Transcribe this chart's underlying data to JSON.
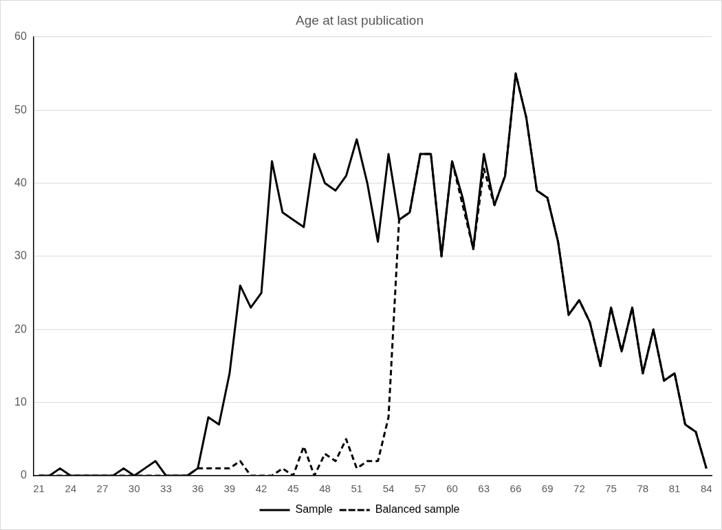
{
  "chart_data": {
    "type": "line",
    "title": "Age at last publication",
    "categories": [
      "21",
      null,
      null,
      "24",
      null,
      null,
      "27",
      null,
      null,
      "30",
      null,
      null,
      "33",
      null,
      null,
      "36",
      null,
      null,
      "39",
      null,
      null,
      "42",
      null,
      null,
      "45",
      null,
      null,
      "48",
      null,
      null,
      "51",
      null,
      null,
      "54",
      null,
      null,
      "57",
      null,
      null,
      "60",
      null,
      null,
      "63",
      null,
      null,
      "66",
      null,
      null,
      "69",
      null,
      null,
      "72",
      null,
      null,
      "75",
      null,
      null,
      "78",
      null,
      null,
      "81",
      null,
      null,
      "84"
    ],
    "series": [
      {
        "name": "Sample",
        "color": "#000000",
        "line_style": "solid",
        "values": [
          0,
          0,
          1,
          0,
          0,
          0,
          0,
          0,
          1,
          0,
          1,
          2,
          0,
          0,
          0,
          1,
          8,
          7,
          14,
          26,
          23,
          25,
          43,
          36,
          35,
          34,
          44,
          40,
          39,
          41,
          46,
          40,
          32,
          44,
          35,
          36,
          44,
          44,
          30,
          43,
          38,
          31,
          44,
          37,
          41,
          55,
          49,
          39,
          38,
          32,
          22,
          24,
          21,
          15,
          23,
          17,
          23,
          14,
          20,
          13,
          14,
          7,
          6,
          1
        ]
      },
      {
        "name": "Balanced sample",
        "color": "#000000",
        "line_style": "dashed",
        "values": [
          0,
          0,
          0,
          0,
          0,
          0,
          0,
          0,
          0,
          0,
          0,
          0,
          0,
          0,
          0,
          1,
          1,
          1,
          1,
          2,
          0,
          0,
          0,
          1,
          0,
          4,
          0,
          3,
          2,
          5,
          1,
          2,
          2,
          8,
          35,
          36,
          44,
          44,
          30,
          43,
          37,
          31,
          42,
          37,
          41,
          55,
          49,
          39,
          38,
          32,
          22,
          24,
          21,
          15,
          23,
          17,
          23,
          14,
          20,
          13,
          14,
          7,
          6,
          1
        ]
      }
    ],
    "ylim": [
      0,
      60
    ],
    "yticks": [
      0,
      10,
      20,
      30,
      40,
      50,
      60
    ],
    "grid": "y",
    "legend": "bottom",
    "marker": "none"
  }
}
